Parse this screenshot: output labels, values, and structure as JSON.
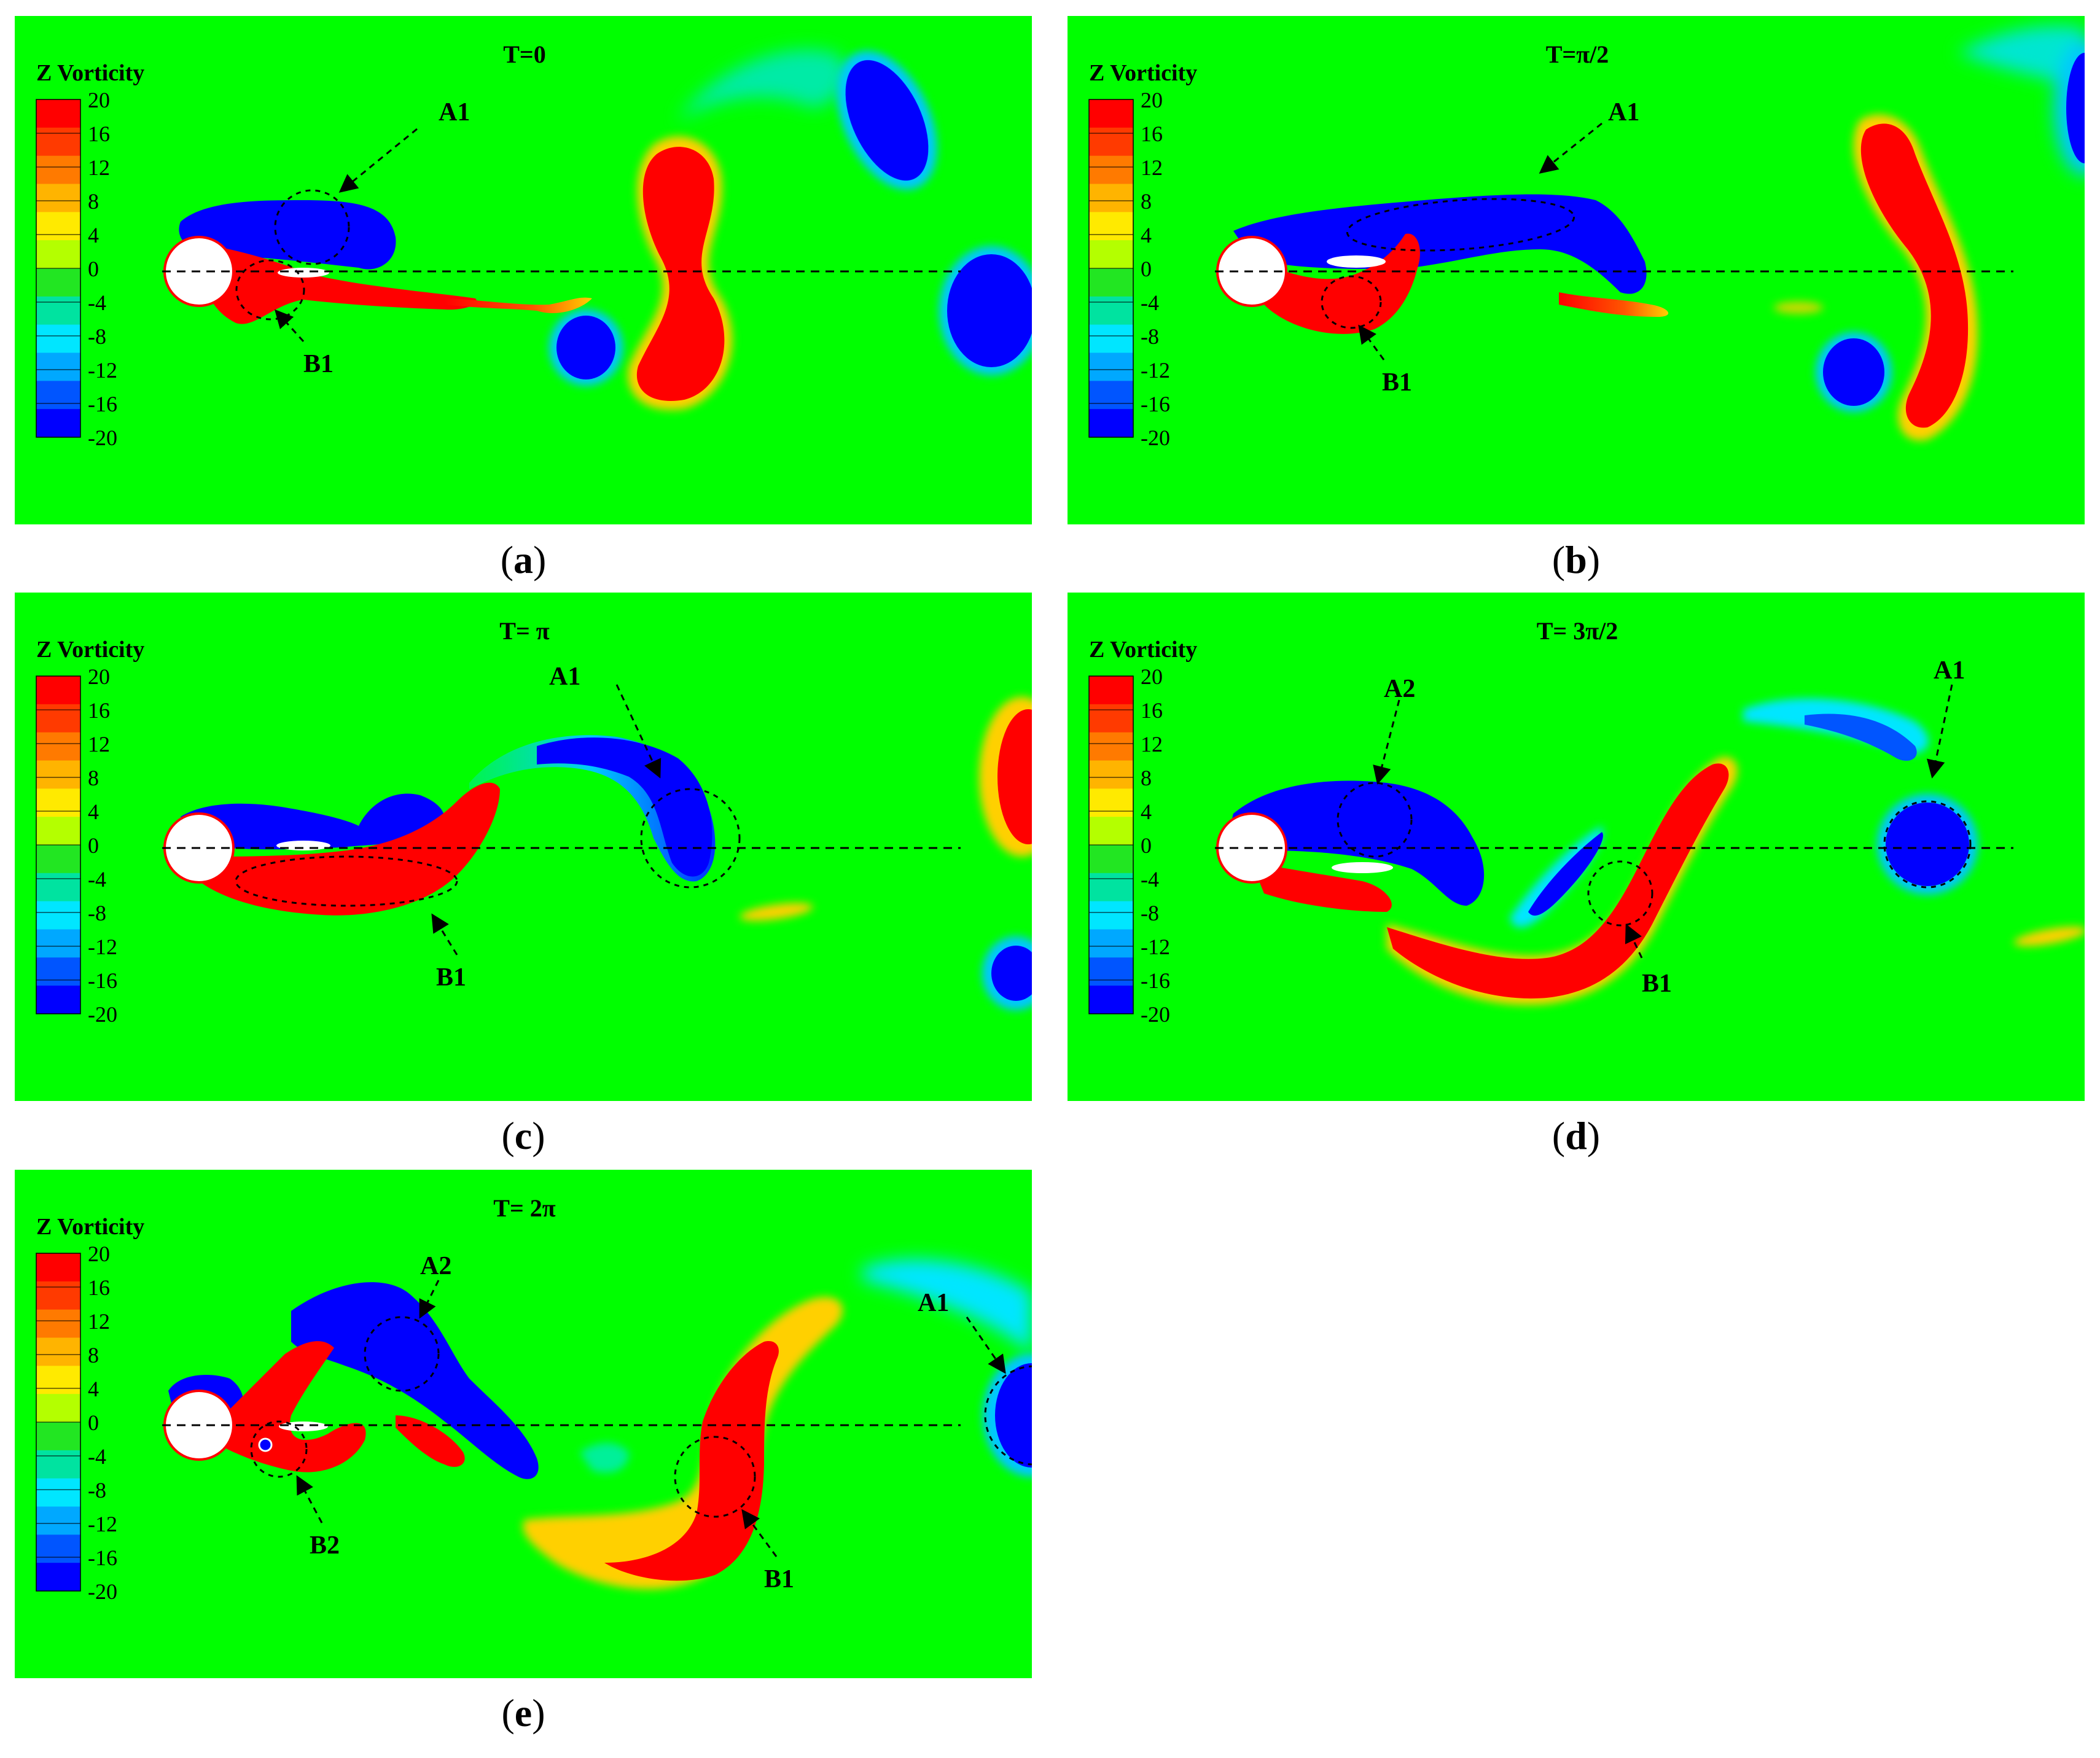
{
  "colors": {
    "background": "#00FF00",
    "positive": "#FF0000",
    "negative": "#0000FF",
    "cylinder": "#FFFFFF"
  },
  "legend": {
    "title": "Z Vorticity",
    "ticks": [
      "20",
      "16",
      "12",
      "8",
      "4",
      "0",
      "-4",
      "-8",
      "-12",
      "-16",
      "-20"
    ],
    "colors": [
      "#FF0000",
      "#FF3A00",
      "#FF7A00",
      "#FFB400",
      "#FFEA00",
      "#B4FF00",
      "#22E622",
      "#00E3A0",
      "#00E6FF",
      "#00A8FF",
      "#0055FF",
      "#0000FF"
    ]
  },
  "panels": [
    {
      "id": "a",
      "label": "a",
      "time": "T=0",
      "annotations": [
        "A1",
        "B1"
      ]
    },
    {
      "id": "b",
      "label": "b",
      "time": "T=π/2",
      "annotations": [
        "A1",
        "B1"
      ]
    },
    {
      "id": "c",
      "label": "c",
      "time": "T= π",
      "annotations": [
        "A1",
        "B1"
      ]
    },
    {
      "id": "d",
      "label": "d",
      "time": "T= 3π/2",
      "annotations": [
        "A2",
        "A1",
        "B1"
      ]
    },
    {
      "id": "e",
      "label": "e",
      "time": "T= 2π",
      "annotations": [
        "A2",
        "A1",
        "B2",
        "B1"
      ]
    }
  ]
}
